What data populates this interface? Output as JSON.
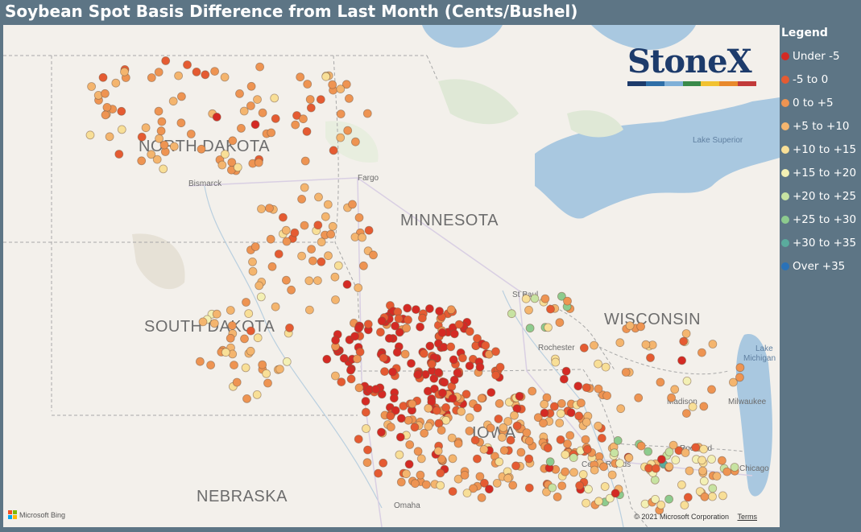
{
  "title": "Soybean Spot Basis Difference from Last Month (Cents/Bushel)",
  "legend": {
    "title": "Legend",
    "items": [
      {
        "label": "Under -5",
        "color": "#d42a24"
      },
      {
        "label": "-5 to 0",
        "color": "#e55b32"
      },
      {
        "label": "0 to +5",
        "color": "#ee9452"
      },
      {
        "label": "+5 to +10",
        "color": "#f4b56e"
      },
      {
        "label": "+10 to +15",
        "color": "#f8df97"
      },
      {
        "label": "+15 to +20",
        "color": "#f3f0b4"
      },
      {
        "label": "+20 to +25",
        "color": "#c7e3a2"
      },
      {
        "label": "+25 to +30",
        "color": "#8dcb8e"
      },
      {
        "label": "+30 to +35",
        "color": "#5aab9d"
      },
      {
        "label": "Over +35",
        "color": "#2a72b8"
      }
    ]
  },
  "map": {
    "states": [
      "NORTH DAKOTA",
      "SOUTH DAKOTA",
      "MINNESOTA",
      "WISCONSIN",
      "NEBRASKA",
      "IOWA"
    ],
    "cities": [
      "Bismarck",
      "Fargo",
      "St Paul",
      "Rochester",
      "Madison",
      "Milwaukee",
      "Chicago",
      "Rockford",
      "Cedar Rapids",
      "Omaha"
    ],
    "water": [
      "Lake Superior",
      "Lake",
      "Michigan"
    ],
    "attribution": "© 2021 Microsoft Corporation",
    "terms": "Terms",
    "bing": "Microsoft Bing"
  },
  "logo": {
    "text": "StoneX",
    "bar_colors": [
      "#1d3b6b",
      "#2f6fa8",
      "#7fb0d8",
      "#3a8a4a",
      "#f2c230",
      "#e8892b",
      "#c23a3a"
    ]
  }
}
